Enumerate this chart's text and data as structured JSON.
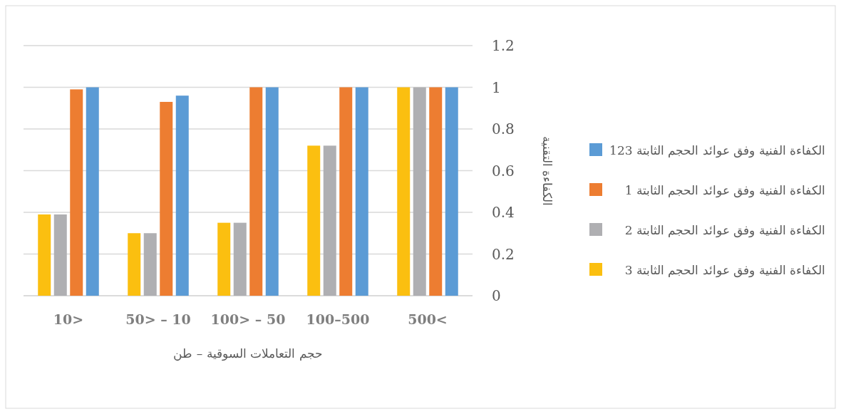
{
  "chart_data": {
    "type": "bar",
    "xlabel": "حجم التعاملات السوقية – طن",
    "ylabel": "الكفاءة التقنية",
    "categories": [
      "10>",
      "50> – 10",
      "100> – 50",
      "100–500",
      "500<"
    ],
    "series": [
      {
        "name": "الكفاءة الفنية وفق عوائد الحجم الثابتة 3",
        "color": "#fbbf10",
        "values": [
          0.39,
          0.3,
          0.35,
          0.72,
          1
        ]
      },
      {
        "name": "الكفاءة الفنية وفق عوائد الحجم الثابتة  2",
        "color": "#afafb2",
        "values": [
          0.39,
          0.3,
          0.35,
          0.72,
          1
        ]
      },
      {
        "name": "الكفاءة الفنية وفق عوائد الحجم الثابتة  1",
        "color": "#ed7d31",
        "values": [
          0.99,
          0.93,
          1,
          1,
          1
        ]
      },
      {
        "name": "الكفاءة الفنية وفق عوائد الحجم الثابتة  123",
        "color": "#5b9bd5",
        "values": [
          1,
          0.96,
          1,
          1,
          1
        ]
      }
    ],
    "ylim": [
      0,
      1.2
    ],
    "yticks": [
      0,
      0.2,
      0.4,
      0.6,
      0.8,
      1,
      1.2
    ],
    "grid": true,
    "legend": "right"
  }
}
